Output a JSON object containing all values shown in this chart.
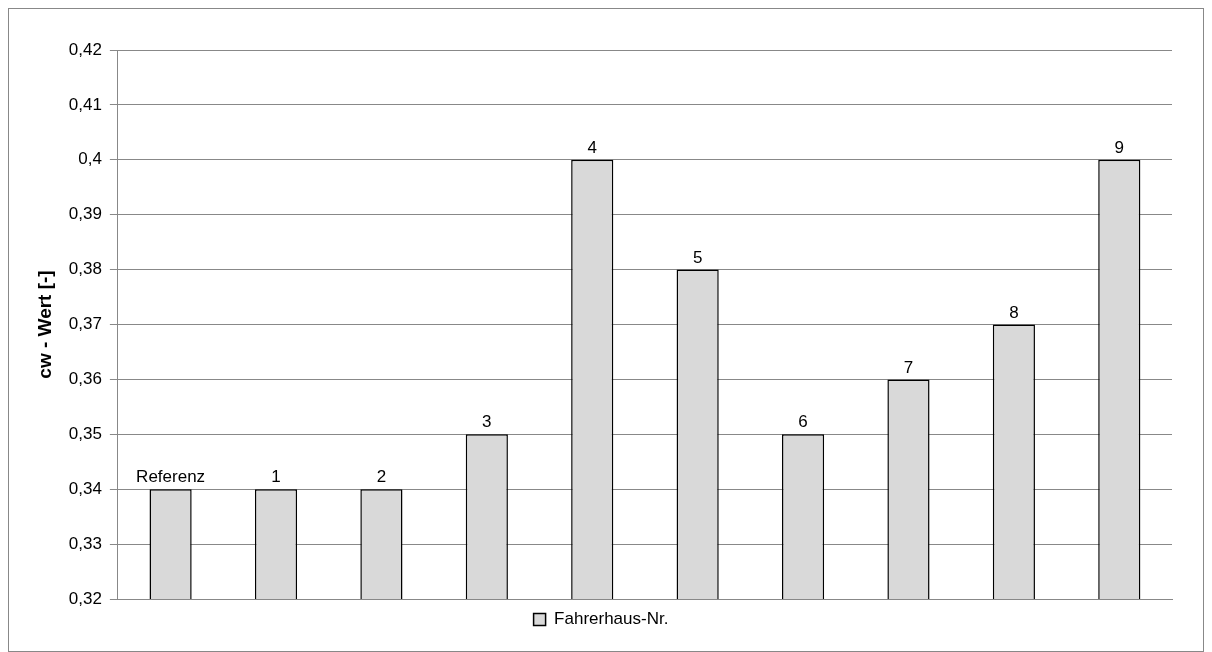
{
  "chart_data": {
    "type": "bar",
    "ylabel": "cw - Wert [-]",
    "categories": [
      "Referenz",
      "1",
      "2",
      "3",
      "4",
      "5",
      "6",
      "7",
      "8",
      "9"
    ],
    "series": [
      {
        "name": "Fahrerhaus-Nr.",
        "color": "#d9d9d9",
        "values": [
          0.34,
          0.34,
          0.34,
          0.35,
          0.4,
          0.38,
          0.35,
          0.36,
          0.37,
          0.4
        ]
      }
    ],
    "ylim": [
      0.32,
      0.42
    ],
    "yticks": [
      {
        "value": 0.32,
        "label": "0,32"
      },
      {
        "value": 0.33,
        "label": "0,33"
      },
      {
        "value": 0.34,
        "label": "0,34"
      },
      {
        "value": 0.35,
        "label": "0,35"
      },
      {
        "value": 0.36,
        "label": "0,36"
      },
      {
        "value": 0.37,
        "label": "0,37"
      },
      {
        "value": 0.38,
        "label": "0,38"
      },
      {
        "value": 0.39,
        "label": "0,39"
      },
      {
        "value": 0.4,
        "label": "0,4"
      },
      {
        "value": 0.41,
        "label": "0,41"
      },
      {
        "value": 0.42,
        "label": "0,42"
      }
    ],
    "grid": "y",
    "legend": "bottom",
    "tick_labels": "y"
  }
}
